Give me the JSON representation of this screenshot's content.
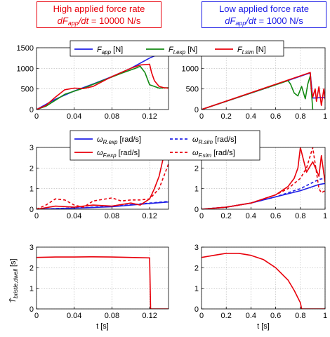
{
  "headers": {
    "high": {
      "line1": "High applied force rate",
      "var": "dF",
      "sub": "app",
      "mid": "/dt = ",
      "value": "10000 N/s"
    },
    "low": {
      "line1": "Low applied force rate",
      "var": "dF",
      "sub": "app",
      "mid": "/dt = ",
      "value": "1000 N/s"
    }
  },
  "colors": {
    "high_box": "#e8000b",
    "low_box": "#1a1ae6",
    "blue": "#1f1fe6",
    "green": "#138a13",
    "red": "#e8000b"
  },
  "chart_data": [
    {
      "id": "force-high",
      "type": "line",
      "panel": "top-left",
      "xlim": [
        0,
        0.14
      ],
      "ylim": [
        0,
        1500
      ],
      "xticks": [
        "0",
        "0.04",
        "0.08",
        "0.12"
      ],
      "yticks": [
        "0",
        "500",
        "1000",
        "1500"
      ],
      "grid": true,
      "legend": "top",
      "series": [
        {
          "name": "F_app [N]",
          "color": "blue",
          "dash": false,
          "x": [
            0,
            0.02,
            0.04,
            0.06,
            0.08,
            0.1,
            0.12,
            0.13,
            0.14
          ],
          "y": [
            0,
            250,
            450,
            620,
            800,
            1000,
            1250,
            1350,
            1380
          ]
        },
        {
          "name": "F_t.exp [N]",
          "color": "green",
          "dash": false,
          "x": [
            0,
            0.01,
            0.03,
            0.05,
            0.07,
            0.09,
            0.105,
            0.11,
            0.115,
            0.12,
            0.125,
            0.13,
            0.14
          ],
          "y": [
            0,
            80,
            370,
            520,
            700,
            880,
            1000,
            1050,
            900,
            600,
            560,
            520,
            530
          ]
        },
        {
          "name": "F_t.sim [N]",
          "color": "red",
          "dash": false,
          "x": [
            0,
            0.01,
            0.02,
            0.03,
            0.04,
            0.05,
            0.06,
            0.07,
            0.08,
            0.09,
            0.1,
            0.11,
            0.12,
            0.122,
            0.125,
            0.13,
            0.135,
            0.14
          ],
          "y": [
            0,
            100,
            300,
            480,
            520,
            510,
            560,
            680,
            800,
            900,
            1000,
            1080,
            1100,
            900,
            700,
            560,
            530,
            520
          ]
        }
      ]
    },
    {
      "id": "force-low",
      "type": "line",
      "panel": "top-right",
      "xlim": [
        0,
        1
      ],
      "ylim": [
        0,
        1500
      ],
      "xticks": [
        "0",
        "0.2",
        "0.4",
        "0.6",
        "0.8",
        "1"
      ],
      "yticks": [
        "0",
        "500",
        "1000",
        "1500"
      ],
      "grid": true,
      "series": [
        {
          "name": "F_app",
          "color": "blue",
          "dash": false,
          "x": [
            0,
            0.5,
            0.87,
            0.88,
            0.9,
            0.93,
            0.96,
            1.0
          ],
          "y": [
            0,
            500,
            880,
            880,
            280,
            280,
            290,
            290
          ]
        },
        {
          "name": "F_t.exp",
          "color": "green",
          "dash": false,
          "x": [
            0,
            0.7,
            0.72,
            0.75,
            0.78,
            0.81,
            0.84,
            0.86,
            0.88,
            0.9
          ],
          "y": [
            0,
            700,
            620,
            400,
            330,
            560,
            260,
            620,
            820,
            0
          ]
        },
        {
          "name": "F_t.sim",
          "color": "red",
          "dash": false,
          "x": [
            0,
            0.88,
            0.89,
            0.9,
            0.92,
            0.93,
            0.95,
            0.97,
            0.99,
            1.0
          ],
          "y": [
            0,
            900,
            480,
            300,
            500,
            200,
            550,
            100,
            500,
            250
          ]
        }
      ]
    },
    {
      "id": "omega-high",
      "type": "line",
      "panel": "middle-left",
      "xlim": [
        0,
        0.14
      ],
      "ylim": [
        0,
        3
      ],
      "xticks": [
        "0",
        "0.04",
        "0.08",
        "0.12"
      ],
      "yticks": [
        "0",
        "1",
        "2",
        "3"
      ],
      "grid": true,
      "legend": "top",
      "series": [
        {
          "name": "ω_R.exp [rad/s]",
          "color": "blue",
          "dash": false,
          "x": [
            0,
            0.04,
            0.08,
            0.12,
            0.14
          ],
          "y": [
            0,
            0.05,
            0.12,
            0.28,
            0.35
          ]
        },
        {
          "name": "ω_R.sim [rad/s]",
          "color": "blue",
          "dash": true,
          "x": [
            0,
            0.04,
            0.08,
            0.12,
            0.14
          ],
          "y": [
            0,
            0.06,
            0.14,
            0.3,
            0.38
          ]
        },
        {
          "name": "ω_F.exp [rad/s]",
          "color": "red",
          "dash": false,
          "x": [
            0,
            0.02,
            0.04,
            0.06,
            0.08,
            0.1,
            0.11,
            0.12,
            0.125,
            0.13,
            0.135,
            0.14
          ],
          "y": [
            0,
            0.15,
            0.1,
            0.2,
            0.15,
            0.3,
            0.2,
            0.5,
            1.0,
            1.6,
            2.6,
            3.0
          ]
        },
        {
          "name": "ω_F.sim [rad/s]",
          "color": "red",
          "dash": true,
          "x": [
            0,
            0.01,
            0.02,
            0.03,
            0.04,
            0.05,
            0.06,
            0.08,
            0.09,
            0.1,
            0.11,
            0.12,
            0.13,
            0.135,
            0.14
          ],
          "y": [
            0,
            0.2,
            0.5,
            0.45,
            0.2,
            0.1,
            0.4,
            0.55,
            0.4,
            0.45,
            0.45,
            0.5,
            1.0,
            1.6,
            2.2
          ]
        }
      ]
    },
    {
      "id": "omega-low",
      "type": "line",
      "panel": "middle-right",
      "xlim": [
        0,
        1
      ],
      "ylim": [
        0,
        3
      ],
      "xticks": [
        "0",
        "0.2",
        "0.4",
        "0.6",
        "0.8",
        "1"
      ],
      "yticks": [
        "0",
        "1",
        "2",
        "3"
      ],
      "grid": true,
      "series": [
        {
          "name": "ω_R.exp",
          "color": "blue",
          "dash": false,
          "x": [
            0,
            0.2,
            0.4,
            0.6,
            0.8,
            0.9,
            0.95,
            1.0
          ],
          "y": [
            0,
            0.1,
            0.3,
            0.6,
            0.9,
            1.1,
            1.2,
            1.25
          ]
        },
        {
          "name": "ω_R.sim",
          "color": "blue",
          "dash": true,
          "x": [
            0,
            0.2,
            0.4,
            0.6,
            0.8,
            0.9,
            0.95,
            1.0
          ],
          "y": [
            0,
            0.1,
            0.3,
            0.6,
            1.0,
            1.3,
            1.45,
            1.5
          ]
        },
        {
          "name": "ω_F.exp",
          "color": "red",
          "dash": false,
          "x": [
            0,
            0.2,
            0.4,
            0.6,
            0.7,
            0.75,
            0.78,
            0.8,
            0.85,
            0.9,
            0.93,
            0.95,
            0.97,
            1.0
          ],
          "y": [
            0,
            0.1,
            0.3,
            0.7,
            1.1,
            1.5,
            2.0,
            3.0,
            1.8,
            2.3,
            1.9,
            1.6,
            2.6,
            1.3
          ]
        },
        {
          "name": "ω_F.sim",
          "color": "red",
          "dash": true,
          "x": [
            0,
            0.2,
            0.4,
            0.6,
            0.7,
            0.8,
            0.85,
            0.9,
            0.93,
            0.95,
            0.97,
            1.0
          ],
          "y": [
            0,
            0.1,
            0.3,
            0.7,
            1.0,
            1.5,
            2.0,
            3.0,
            1.8,
            1.0,
            0.8,
            0.9
          ]
        }
      ]
    },
    {
      "id": "dwell-high",
      "type": "line",
      "panel": "bottom-left",
      "xlim": [
        0,
        0.14
      ],
      "ylim": [
        0,
        3
      ],
      "xticks": [
        "0",
        "0.04",
        "0.08",
        "0.12"
      ],
      "yticks": [
        "0",
        "1",
        "2",
        "3"
      ],
      "xlabel": "t [s]",
      "ylabel": "T̄_bristle,dwell [s]",
      "grid": true,
      "series": [
        {
          "name": "T_bristle,dwell",
          "color": "red",
          "dash": false,
          "x": [
            0,
            0.02,
            0.04,
            0.06,
            0.08,
            0.1,
            0.12,
            0.121,
            0.14
          ],
          "y": [
            2.5,
            2.52,
            2.52,
            2.53,
            2.52,
            2.5,
            2.48,
            0,
            0
          ]
        }
      ]
    },
    {
      "id": "dwell-low",
      "type": "line",
      "panel": "bottom-right",
      "xlim": [
        0,
        1
      ],
      "ylim": [
        0,
        3
      ],
      "xticks": [
        "0",
        "0.2",
        "0.4",
        "0.6",
        "0.8",
        "1"
      ],
      "yticks": [
        "0",
        "1",
        "2",
        "3"
      ],
      "xlabel": "t [s]",
      "grid": true,
      "series": [
        {
          "name": "T_bristle,dwell",
          "color": "red",
          "dash": false,
          "x": [
            0,
            0.1,
            0.2,
            0.3,
            0.4,
            0.5,
            0.6,
            0.7,
            0.75,
            0.8,
            0.81,
            1.0
          ],
          "y": [
            2.5,
            2.6,
            2.7,
            2.7,
            2.6,
            2.4,
            2.0,
            1.4,
            0.9,
            0.3,
            0,
            0
          ]
        }
      ]
    }
  ],
  "legends": {
    "force": [
      {
        "sym": "F",
        "sub": "app",
        "unit": " [N]",
        "color": "blue",
        "dash": false
      },
      {
        "sym": "F",
        "sub": "t.exp",
        "unit": " [N]",
        "color": "green",
        "dash": false
      },
      {
        "sym": "F",
        "sub": "t.sim",
        "unit": " [N]",
        "color": "red",
        "dash": false
      }
    ],
    "omega": [
      {
        "sym": "ω",
        "sub": "R.exp",
        "unit": " [rad/s]",
        "color": "blue",
        "dash": false
      },
      {
        "sym": "ω",
        "sub": "R.sim",
        "unit": " [rad/s]",
        "color": "blue",
        "dash": true
      },
      {
        "sym": "ω",
        "sub": "F.exp",
        "unit": " [rad/s]",
        "color": "red",
        "dash": false
      },
      {
        "sym": "ω",
        "sub": "F.sim",
        "unit": " [rad/s]",
        "color": "red",
        "dash": true
      }
    ]
  },
  "axis_text": {
    "xlabel": "t [s]",
    "ylabel": {
      "sym": "T̄",
      "sub": "bristle,dwell",
      "unit": " [s]"
    }
  }
}
